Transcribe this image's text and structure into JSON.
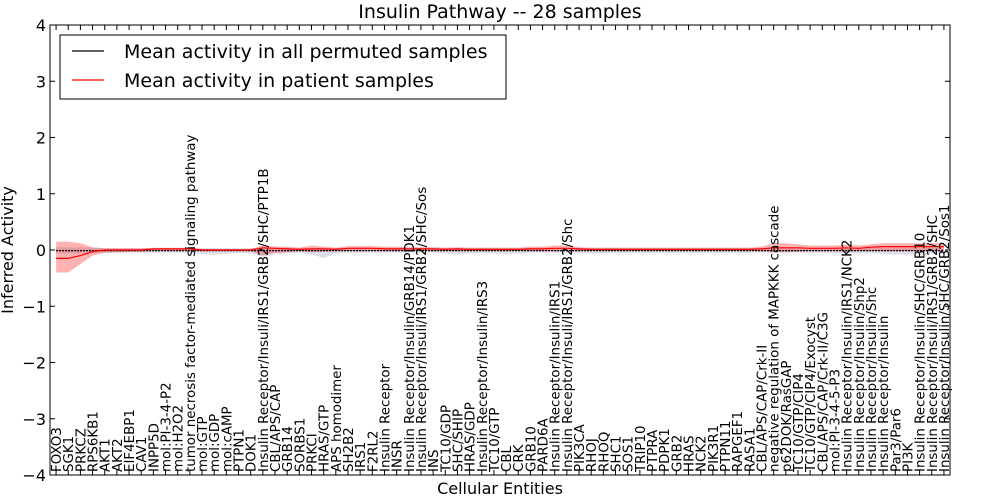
{
  "chart_data": {
    "type": "line",
    "title": "Insulin Pathway -- 28 samples",
    "xlabel": "Cellular Entities",
    "ylabel": "Inferred Activity",
    "ylim": [
      -4,
      4
    ],
    "yticks": [
      "4",
      "3",
      "2",
      "1",
      "0",
      "−1",
      "−2",
      "−3",
      "−4"
    ],
    "ytick_values": [
      4,
      3,
      2,
      1,
      0,
      -1,
      -2,
      -3,
      -4
    ],
    "legend": {
      "placement": "top-left",
      "entries": [
        {
          "label": "Mean activity in all permuted samples",
          "color": "#000000"
        },
        {
          "label": "Mean activity in patient samples",
          "color": "#ff0000"
        }
      ]
    },
    "categories": [
      "FOXO3",
      "SGK1",
      "PRKCZ",
      "RPS6KB1",
      "AKT1",
      "AKT2",
      "EIF4EBP1",
      "CAV1",
      "INPP5D",
      "mol:PI-3-4-P2",
      "mol:H2O2",
      "tumor necrosis factor-mediated signaling pathway",
      "mol:GTP",
      "mol:GDP",
      "mol:cAMP",
      "PTPN1",
      "DOK1",
      "Insulin Receptor/Insuli/IRS1/GRB2/SHC/PTP1B",
      "CBL/APS/CAP",
      "GRB14",
      "SORBS1",
      "PRKCI",
      "HRAS/GTP",
      "APS homodimer",
      "SH2B2",
      "IRS1",
      "F2RL2",
      "Insulin Receptor",
      "INSR",
      "Insulin Receptor/Insulin/GRB14/PDK1",
      "Insulin Receptor/Insuli/IRS1/GRB2/SHC/Sos",
      "INS",
      "TC10/GDP",
      "SHC/SHIP",
      "HRAS/GDP",
      "Insulin Receptor/Insulin/IRS3",
      "TC10/GTP",
      "CBL",
      "CRK",
      "GRB10",
      "PARD6A",
      "Insulin Receptor/Insulin/IRS1",
      "Insulin Receptor/Insuli/IRS1/GRB2/Shc",
      "PIK3CA",
      "RHOJ",
      "RHOQ",
      "SHC1",
      "SOS1",
      "TRIP10",
      "PTPRA",
      "PDPK1",
      "GRB2",
      "HRAS",
      "NCK2",
      "PIK3R1",
      "PTPN11",
      "RAPGEF1",
      "RASA1",
      "CBL/APS/CAP/Crk-II",
      "negative regulation of MAPKKK cascade",
      "p62DOK/RasGAP",
      "TC10/GTP/CIP4",
      "TC10/GTP/CIP4/Exocyst",
      "CBL/APS/CAP/Crk-II/C3G",
      "mol:PI-3-4-5-P3",
      "Insulin Receptor/Insulin/IRS1/NCK2",
      "Insulin Receptor/Insulin/Shp2",
      "Insulin Receptor/Insulin/Shc",
      "Insulin Receptor/Insulin",
      "Par3/Par6",
      "PI3K",
      "Insulin Receptor/Insulin/SHC/GRB10",
      "Insulin Receptor/Insuli/IRS1/GRB2/SHC",
      "Insulin Receptor/Insulin/SHC/GRB2/Sos1"
    ],
    "series": [
      {
        "name": "Mean activity in patient samples",
        "color": "#ff0000",
        "values": [
          -0.15,
          -0.15,
          -0.1,
          -0.03,
          0,
          0,
          0,
          0,
          0.02,
          0.02,
          0.02,
          0.02,
          0,
          0,
          0,
          0,
          0,
          0.04,
          0.03,
          0.02,
          0.01,
          0.02,
          0.02,
          0.01,
          0.03,
          0.03,
          0.03,
          0.02,
          0.02,
          0.02,
          0.02,
          0.02,
          0.01,
          0.02,
          0.01,
          0.01,
          0.01,
          0.01,
          0.01,
          0.02,
          0.02,
          0.03,
          0.03,
          0.02,
          0.01,
          0.01,
          0.01,
          0.01,
          0.01,
          0.01,
          0.01,
          0.01,
          0.01,
          0.01,
          0.01,
          0.01,
          0.01,
          0.01,
          0.02,
          0.04,
          0.04,
          0.04,
          0.03,
          0.03,
          0.03,
          0.04,
          0.03,
          0.05,
          0.06,
          0.06,
          0.06,
          0.06,
          0.06,
          0.06
        ],
        "band_upper": [
          0.15,
          0.15,
          0.12,
          0.05,
          0.03,
          0.03,
          0.03,
          0.03,
          0.04,
          0.04,
          0.04,
          0.04,
          0.02,
          0.02,
          0.02,
          0.02,
          0.02,
          0.08,
          0.06,
          0.06,
          0.04,
          0.08,
          0.06,
          0.04,
          0.07,
          0.07,
          0.07,
          0.06,
          0.06,
          0.05,
          0.05,
          0.05,
          0.04,
          0.05,
          0.04,
          0.04,
          0.04,
          0.04,
          0.04,
          0.06,
          0.06,
          0.08,
          0.08,
          0.05,
          0.04,
          0.04,
          0.04,
          0.04,
          0.04,
          0.04,
          0.04,
          0.04,
          0.04,
          0.04,
          0.04,
          0.04,
          0.04,
          0.04,
          0.06,
          0.12,
          0.12,
          0.1,
          0.08,
          0.08,
          0.08,
          0.1,
          0.08,
          0.1,
          0.12,
          0.12,
          0.12,
          0.12,
          0.12,
          0.12
        ],
        "band_lower": [
          -0.4,
          -0.4,
          -0.25,
          -0.1,
          -0.05,
          -0.04,
          -0.03,
          -0.03,
          -0.02,
          -0.02,
          -0.02,
          -0.02,
          -0.02,
          -0.02,
          -0.02,
          -0.02,
          -0.02,
          -0.1,
          -0.05,
          -0.04,
          -0.02,
          -0.04,
          -0.03,
          -0.02,
          -0.02,
          -0.02,
          -0.02,
          -0.02,
          -0.02,
          -0.02,
          -0.02,
          -0.02,
          -0.02,
          -0.02,
          -0.02,
          -0.02,
          -0.02,
          -0.02,
          -0.02,
          -0.02,
          -0.02,
          -0.02,
          -0.02,
          -0.02,
          -0.02,
          -0.02,
          -0.02,
          -0.02,
          -0.02,
          -0.02,
          -0.02,
          -0.02,
          -0.02,
          -0.02,
          -0.02,
          -0.02,
          -0.02,
          -0.02,
          -0.02,
          -0.04,
          -0.04,
          -0.03,
          -0.02,
          -0.02,
          -0.02,
          -0.03,
          -0.02,
          -0.02,
          -0.02,
          -0.02,
          -0.02,
          -0.02,
          -0.02,
          -0.02
        ]
      },
      {
        "name": "Mean activity in all permuted samples",
        "color": "#000000",
        "values": [
          -0.01,
          -0.01,
          -0.01,
          -0.01,
          -0.01,
          -0.01,
          -0.01,
          -0.01,
          -0.01,
          -0.01,
          -0.01,
          -0.01,
          -0.01,
          -0.01,
          -0.01,
          -0.01,
          -0.01,
          -0.01,
          -0.01,
          -0.01,
          -0.01,
          -0.01,
          -0.01,
          -0.01,
          -0.01,
          -0.01,
          -0.01,
          -0.01,
          -0.01,
          -0.01,
          -0.01,
          -0.01,
          -0.01,
          -0.01,
          -0.01,
          -0.01,
          -0.01,
          -0.01,
          -0.01,
          -0.01,
          -0.01,
          -0.01,
          -0.01,
          -0.01,
          -0.01,
          -0.01,
          -0.01,
          -0.01,
          -0.01,
          -0.01,
          -0.01,
          -0.01,
          -0.01,
          -0.01,
          -0.01,
          -0.01,
          -0.01,
          -0.01,
          -0.01,
          -0.01,
          -0.01,
          -0.01,
          -0.01,
          -0.01,
          -0.01,
          -0.01,
          -0.01,
          -0.01,
          -0.01,
          -0.01,
          -0.01,
          -0.01,
          -0.01,
          -0.01
        ],
        "band_upper": [
          0.05,
          0.05,
          0.05,
          0.04,
          0.03,
          0.03,
          0.03,
          0.03,
          0.03,
          0.03,
          0.03,
          0.03,
          0.03,
          0.03,
          0.03,
          0.03,
          0.03,
          0.04,
          0.04,
          0.04,
          0.04,
          0.04,
          0.04,
          0.04,
          0.04,
          0.04,
          0.04,
          0.04,
          0.04,
          0.04,
          0.04,
          0.04,
          0.04,
          0.04,
          0.04,
          0.04,
          0.04,
          0.04,
          0.04,
          0.04,
          0.04,
          0.04,
          0.04,
          0.04,
          0.04,
          0.04,
          0.04,
          0.04,
          0.04,
          0.04,
          0.04,
          0.04,
          0.04,
          0.04,
          0.04,
          0.04,
          0.04,
          0.04,
          0.04,
          0.04,
          0.04,
          0.04,
          0.04,
          0.04,
          0.04,
          0.04,
          0.04,
          0.04,
          0.04,
          0.04,
          0.04,
          0.04,
          0.04,
          0.04
        ],
        "band_lower": [
          -0.06,
          -0.06,
          -0.06,
          -0.05,
          -0.05,
          -0.05,
          -0.05,
          -0.05,
          -0.05,
          -0.05,
          -0.05,
          -0.05,
          -0.07,
          -0.09,
          -0.07,
          -0.05,
          -0.06,
          -0.12,
          -0.08,
          -0.06,
          -0.05,
          -0.08,
          -0.14,
          -0.06,
          -0.05,
          -0.05,
          -0.05,
          -0.05,
          -0.05,
          -0.05,
          -0.05,
          -0.05,
          -0.06,
          -0.08,
          -0.06,
          -0.05,
          -0.06,
          -0.07,
          -0.06,
          -0.05,
          -0.05,
          -0.05,
          -0.05,
          -0.06,
          -0.06,
          -0.06,
          -0.05,
          -0.05,
          -0.05,
          -0.05,
          -0.05,
          -0.05,
          -0.05,
          -0.05,
          -0.05,
          -0.05,
          -0.05,
          -0.05,
          -0.05,
          -0.05,
          -0.05,
          -0.05,
          -0.05,
          -0.05,
          -0.06,
          -0.06,
          -0.06,
          -0.06,
          -0.07,
          -0.08,
          -0.08,
          -0.08,
          -0.07,
          -0.07
        ]
      }
    ]
  }
}
